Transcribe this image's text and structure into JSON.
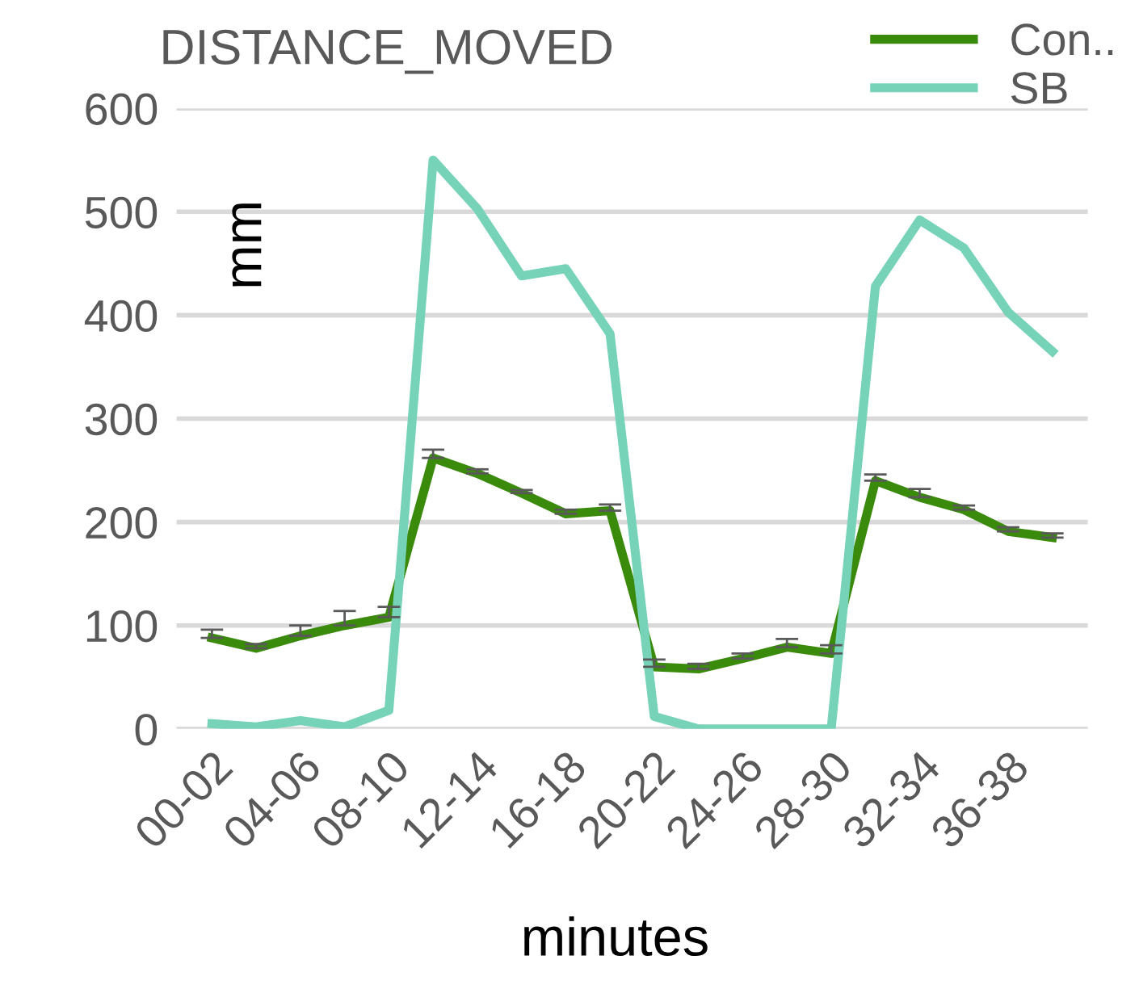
{
  "chart_data": {
    "type": "line",
    "title": "DISTANCE_MOVED",
    "xlabel": "minutes",
    "ylabel": "mm",
    "categories": [
      "00-02",
      null,
      "04-06",
      null,
      "08-10",
      null,
      "12-14",
      null,
      "16-18",
      null,
      "20-22",
      null,
      "24-26",
      null,
      "28-30",
      null,
      "32-34",
      null,
      "36-38",
      null
    ],
    "series": [
      {
        "name": "Con..",
        "color": "#3a8a0c",
        "values": [
          88,
          78,
          90,
          100,
          108,
          262,
          247,
          228,
          208,
          211,
          60,
          58,
          68,
          79,
          73,
          240,
          224,
          212,
          191,
          185
        ],
        "errors": [
          8,
          4,
          10,
          14,
          10,
          8,
          4,
          3,
          4,
          6,
          7,
          5,
          5,
          8,
          8,
          6,
          8,
          4,
          4,
          4
        ]
      },
      {
        "name": "SB",
        "color": "#76d3b8",
        "values": [
          5,
          2,
          8,
          2,
          18,
          550,
          503,
          438,
          445,
          382,
          12,
          0,
          0,
          0,
          0,
          428,
          492,
          465,
          403,
          365
        ]
      }
    ],
    "ylim": [
      0,
      600
    ],
    "yticks": [
      0,
      100,
      200,
      300,
      400,
      500,
      600
    ],
    "grid": "y",
    "legend": "top right",
    "marker": "none",
    "line_style": "solid"
  }
}
